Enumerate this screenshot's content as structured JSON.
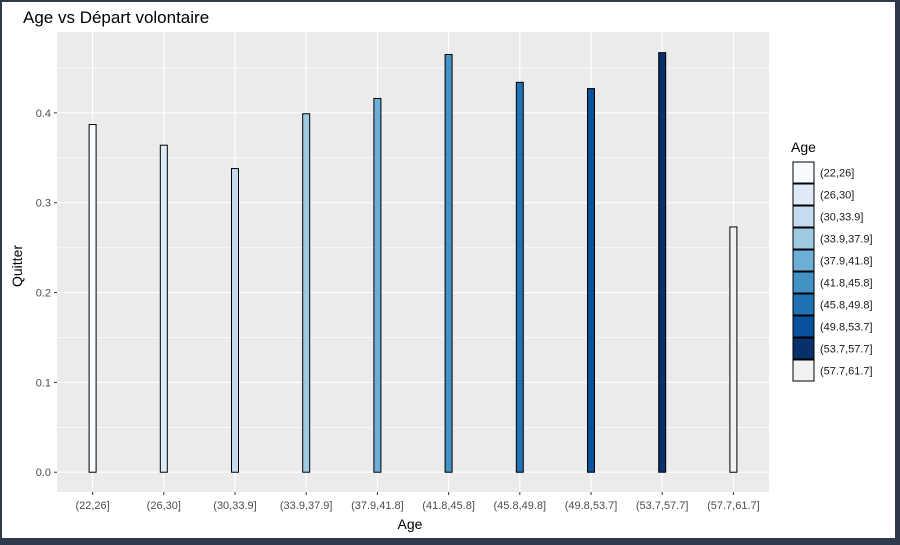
{
  "chart_data": {
    "type": "bar",
    "title": "Age vs Départ volontaire",
    "xlabel": "Age",
    "ylabel": "Quitter",
    "categories": [
      "(22,26]",
      "(26,30]",
      "(30,33.9]",
      "(33.9,37.9]",
      "(37.9,41.8]",
      "(41.8,45.8]",
      "(45.8,49.8]",
      "(49.8,53.7]",
      "(53.7,57.7]",
      "(57.7,61.7]"
    ],
    "values": [
      0.387,
      0.364,
      0.338,
      0.399,
      0.416,
      0.465,
      0.434,
      0.427,
      0.467,
      0.273
    ],
    "ylim": [
      -0.022,
      0.49
    ],
    "yticks": [
      0.0,
      0.1,
      0.2,
      0.3,
      0.4
    ],
    "ytick_labels": [
      "0.0",
      "0.1",
      "0.2",
      "0.3",
      "0.4"
    ],
    "grid": true,
    "legend": {
      "title": "Age",
      "placement": "right",
      "entries": [
        "(22,26]",
        "(26,30]",
        "(30,33.9]",
        "(33.9,37.9]",
        "(37.9,41.8]",
        "(41.8,45.8]",
        "(45.8,49.8]",
        "(49.8,53.7]",
        "(53.7,57.7]",
        "(57.7,61.7]"
      ]
    },
    "colors": [
      "#f7fbff",
      "#deebf7",
      "#c6dbef",
      "#9ecae1",
      "#6baed6",
      "#4292c6",
      "#2171b5",
      "#08519c",
      "#08306b",
      "#f2f2f2"
    ],
    "panel_background": "#ebebeb",
    "grid_color": "#ffffff"
  }
}
